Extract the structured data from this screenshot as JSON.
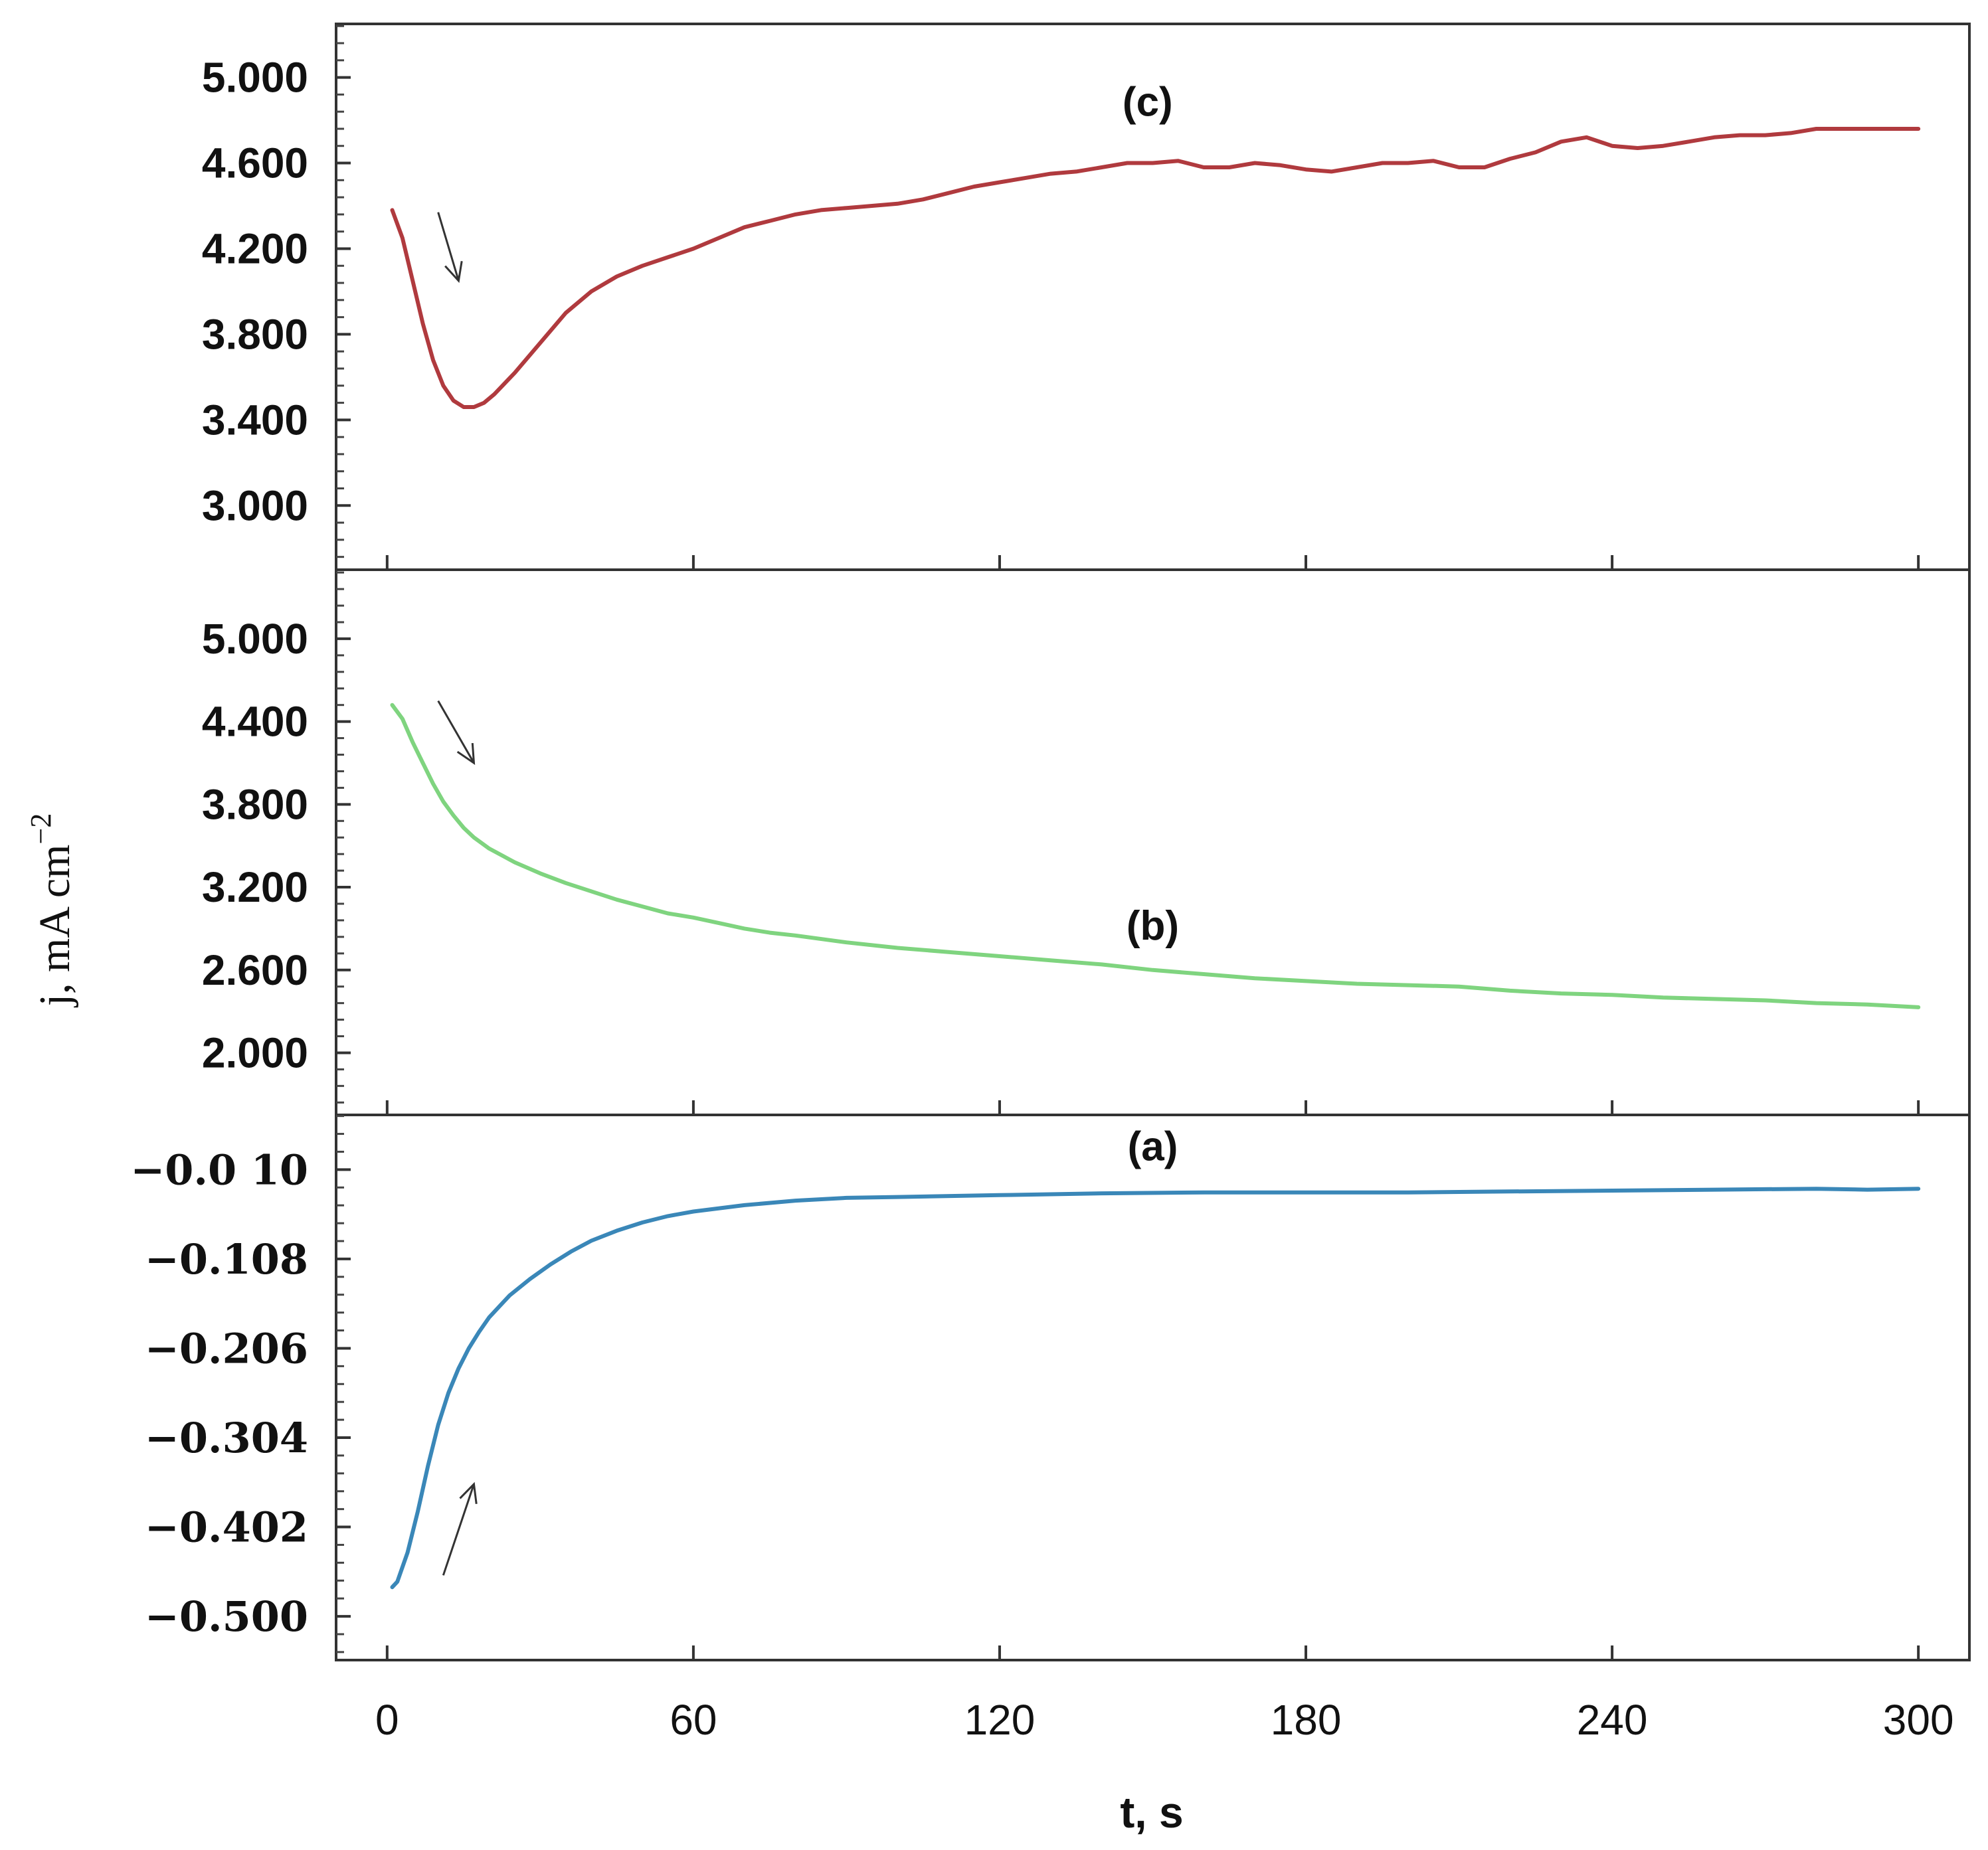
{
  "chart_data": {
    "type": "line",
    "xlabel": "t, s",
    "ylabel_main": "j, mA cm",
    "ylabel_exponent": "−2",
    "xlim": [
      -10,
      310
    ],
    "xticks": [
      0,
      60,
      120,
      180,
      240,
      300
    ],
    "xtick_labels": [
      "0",
      "60",
      "120",
      "180",
      "240",
      "300"
    ],
    "panels": [
      {
        "label": "(c)",
        "color": "#b03a3e",
        "ylim": [
          2.7,
          5.25
        ],
        "yticks": [
          3.0,
          3.4,
          3.8,
          4.2,
          4.6,
          5.0
        ],
        "ytick_labels": [
          "3.000",
          "3.400",
          "3.800",
          "4.200",
          "4.600",
          "5.000"
        ],
        "arrow": "down",
        "x": [
          1,
          3,
          5,
          7,
          9,
          11,
          13,
          15,
          17,
          19,
          21,
          25,
          30,
          35,
          40,
          45,
          50,
          55,
          60,
          65,
          70,
          75,
          80,
          85,
          90,
          95,
          100,
          105,
          110,
          115,
          120,
          125,
          130,
          135,
          140,
          145,
          150,
          155,
          160,
          165,
          170,
          175,
          180,
          185,
          190,
          195,
          200,
          205,
          210,
          215,
          220,
          225,
          230,
          235,
          240,
          245,
          250,
          255,
          260,
          265,
          270,
          275,
          280,
          285,
          290,
          295,
          300
        ],
        "values": [
          4.38,
          4.25,
          4.05,
          3.85,
          3.68,
          3.56,
          3.49,
          3.46,
          3.46,
          3.48,
          3.52,
          3.62,
          3.76,
          3.9,
          4.0,
          4.07,
          4.12,
          4.16,
          4.2,
          4.25,
          4.3,
          4.33,
          4.36,
          4.38,
          4.39,
          4.4,
          4.41,
          4.43,
          4.46,
          4.49,
          4.51,
          4.53,
          4.55,
          4.56,
          4.58,
          4.6,
          4.6,
          4.61,
          4.58,
          4.58,
          4.6,
          4.59,
          4.57,
          4.56,
          4.58,
          4.6,
          4.6,
          4.61,
          4.58,
          4.58,
          4.62,
          4.65,
          4.7,
          4.72,
          4.68,
          4.67,
          4.68,
          4.7,
          4.72,
          4.73,
          4.73,
          4.74,
          4.76,
          4.76,
          4.76,
          4.76,
          4.76
        ]
      },
      {
        "label": "(b)",
        "color": "#7fd47f",
        "ylim": [
          1.55,
          5.5
        ],
        "yticks": [
          2.0,
          2.6,
          3.2,
          3.8,
          4.4,
          5.0
        ],
        "ytick_labels": [
          "2.000",
          "2.600",
          "3.200",
          "3.800",
          "4.400",
          "5.000"
        ],
        "arrow": "down",
        "x": [
          1,
          3,
          5,
          7,
          9,
          11,
          13,
          15,
          17,
          20,
          25,
          30,
          35,
          40,
          45,
          50,
          55,
          60,
          65,
          70,
          75,
          80,
          90,
          100,
          110,
          120,
          130,
          140,
          150,
          160,
          170,
          180,
          190,
          200,
          210,
          220,
          230,
          240,
          250,
          260,
          270,
          280,
          290,
          300
        ],
        "values": [
          4.52,
          4.42,
          4.25,
          4.1,
          3.95,
          3.82,
          3.72,
          3.63,
          3.56,
          3.48,
          3.38,
          3.3,
          3.23,
          3.17,
          3.11,
          3.06,
          3.01,
          2.98,
          2.94,
          2.9,
          2.87,
          2.85,
          2.8,
          2.76,
          2.73,
          2.7,
          2.67,
          2.64,
          2.6,
          2.57,
          2.54,
          2.52,
          2.5,
          2.49,
          2.48,
          2.45,
          2.43,
          2.42,
          2.4,
          2.39,
          2.38,
          2.36,
          2.35,
          2.33
        ]
      },
      {
        "label": "(a)",
        "color": "#3a87b8",
        "ylim": [
          -0.548,
          0.05
        ],
        "yticks": [
          -0.5,
          -0.402,
          -0.304,
          -0.206,
          -0.108,
          -0.01
        ],
        "ytick_labels": [
          "−0.500",
          "−0.402",
          "−0.304",
          "−0.206",
          "−0.108",
          "−0.0 10"
        ],
        "arrow": "up",
        "x": [
          1,
          2,
          4,
          6,
          8,
          10,
          12,
          14,
          16,
          18,
          20,
          24,
          28,
          32,
          36,
          40,
          45,
          50,
          55,
          60,
          70,
          80,
          90,
          100,
          120,
          140,
          160,
          180,
          200,
          220,
          240,
          260,
          280,
          290,
          300
        ],
        "values": [
          -0.468,
          -0.462,
          -0.43,
          -0.385,
          -0.335,
          -0.29,
          -0.255,
          -0.228,
          -0.206,
          -0.188,
          -0.172,
          -0.148,
          -0.13,
          -0.114,
          -0.1,
          -0.088,
          -0.077,
          -0.068,
          -0.061,
          -0.056,
          -0.049,
          -0.044,
          -0.041,
          -0.04,
          -0.038,
          -0.036,
          -0.035,
          -0.035,
          -0.035,
          -0.034,
          -0.033,
          -0.032,
          -0.031,
          -0.032,
          -0.031
        ]
      }
    ]
  }
}
